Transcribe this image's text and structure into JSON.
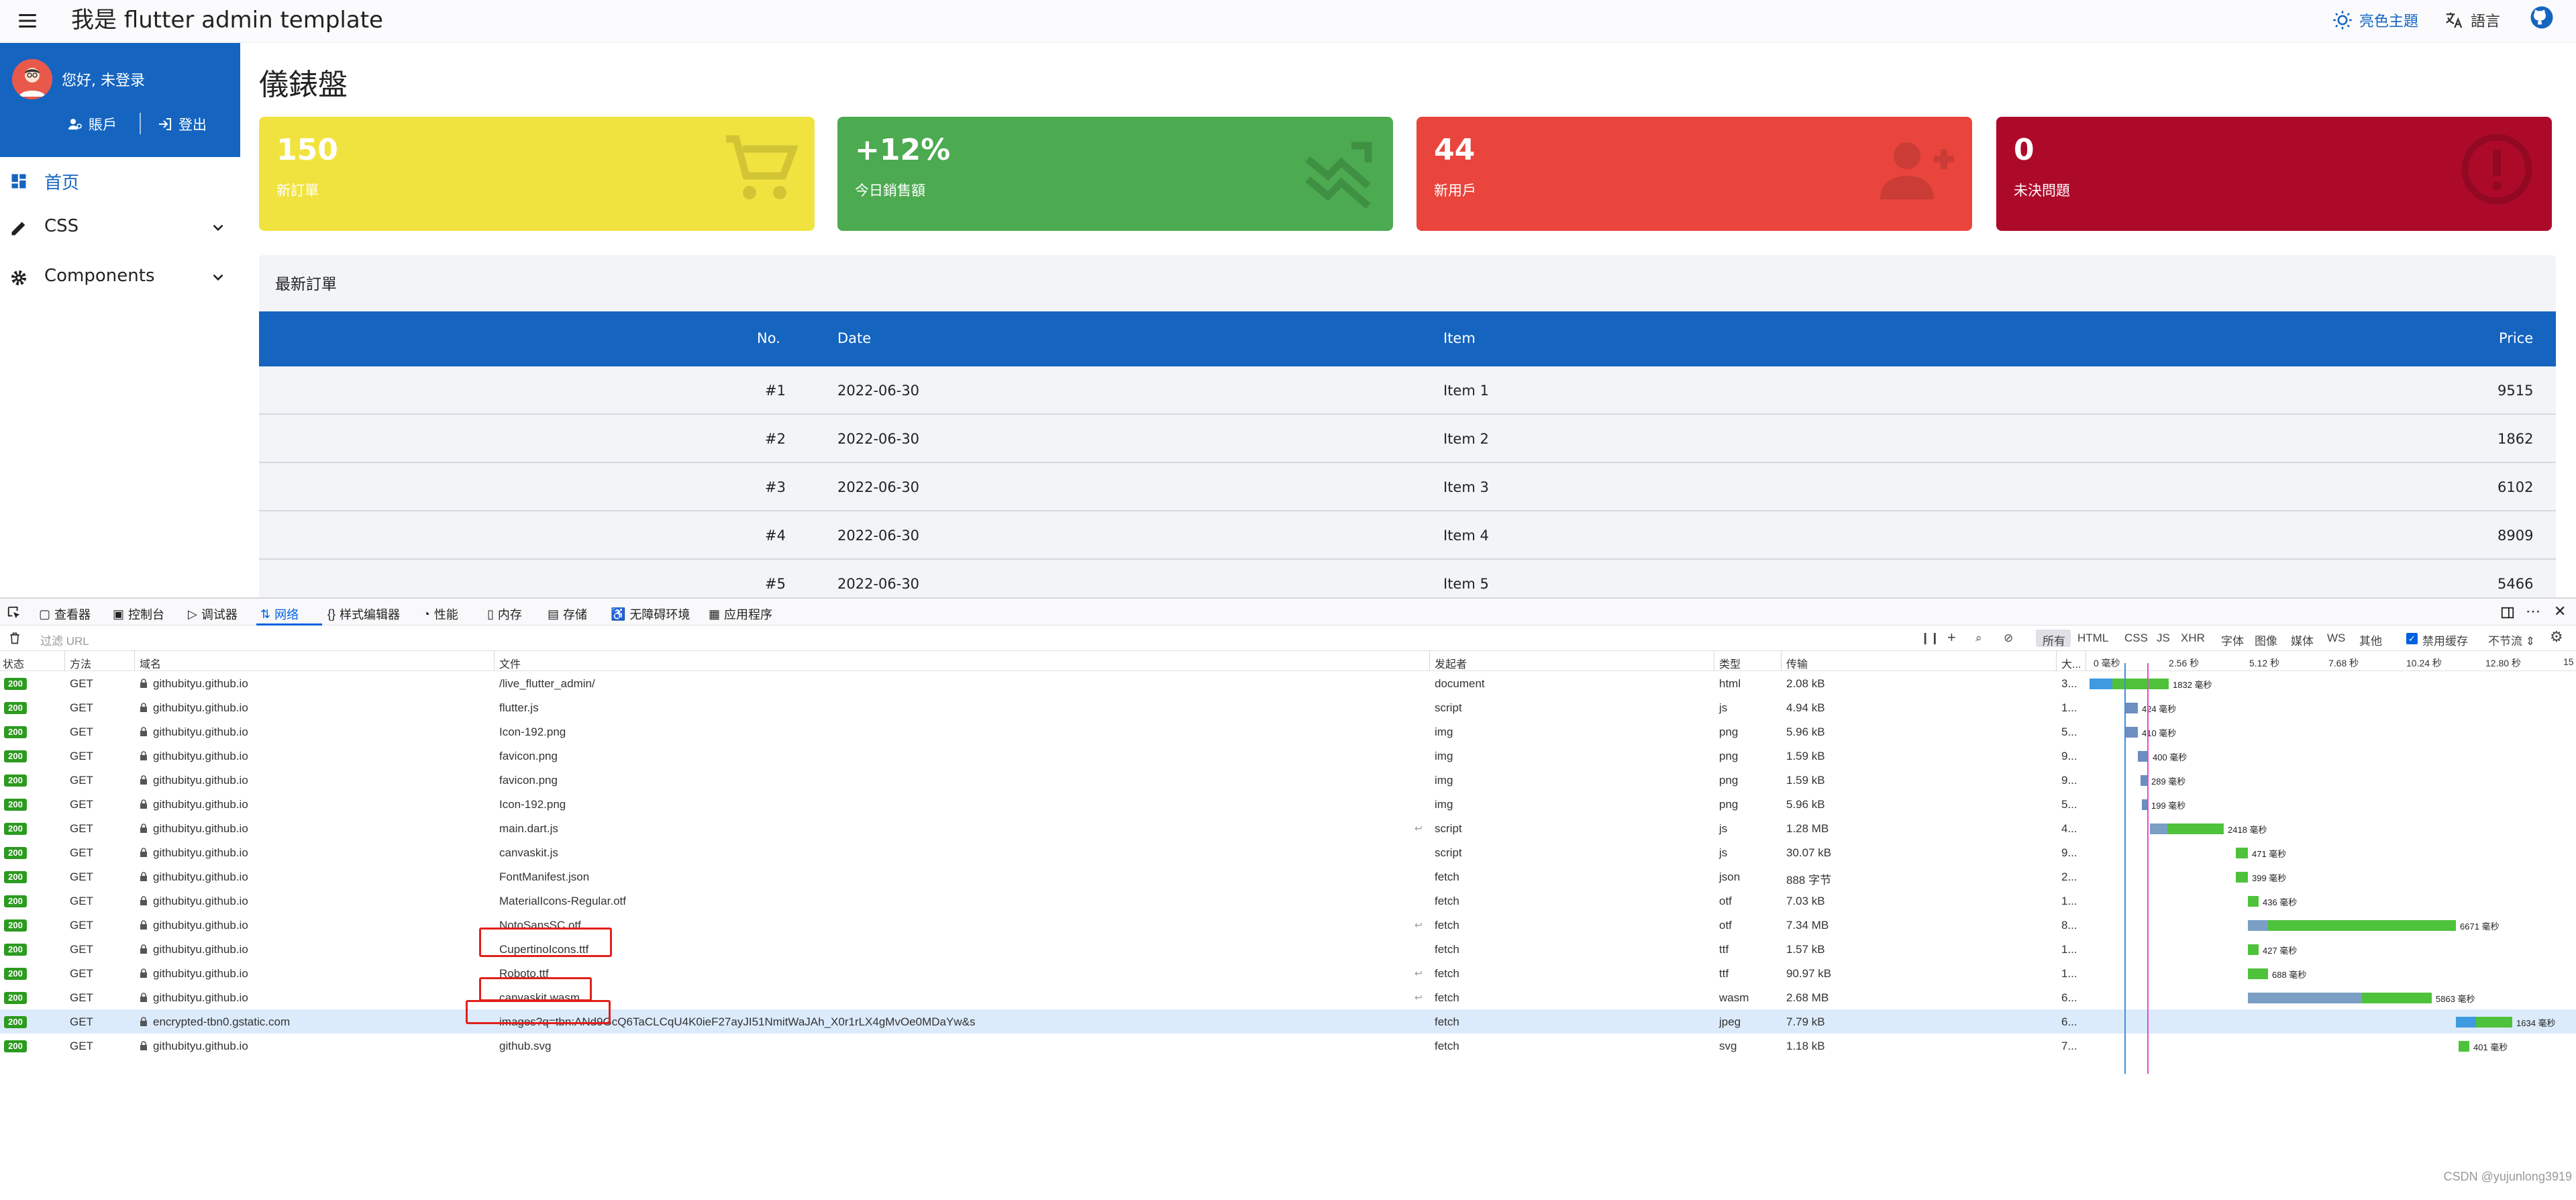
{
  "app": {
    "title": "我是 flutter admin template",
    "theme_label": "亮色主題",
    "lang_label": "語言",
    "sidebar": {
      "greeting": "您好, 未登录",
      "account_label": "賬戶",
      "logout_label": "登出",
      "items": [
        {
          "label": "首页",
          "icon": "dashboard-icon",
          "active": true
        },
        {
          "label": "CSS",
          "icon": "edit-icon"
        },
        {
          "label": "Components",
          "icon": "gear-icon"
        }
      ]
    },
    "page_title": "儀錶盤",
    "cards": [
      {
        "value": "150",
        "caption": "新訂單",
        "color": "#f1e33f",
        "icon": "cart-icon"
      },
      {
        "value": "+12%",
        "caption": "今日銷售額",
        "color": "#4caa50",
        "icon": "trend-icon"
      },
      {
        "value": "44",
        "caption": "新用戶",
        "color": "#e9453d",
        "icon": "add-user-icon"
      },
      {
        "value": "0",
        "caption": "未決問題",
        "color": "#ad0a2a",
        "icon": "alert-icon"
      }
    ],
    "orders": {
      "title": "最新訂單",
      "headers": [
        "No.",
        "Date",
        "Item",
        "Price"
      ],
      "rows": [
        [
          "#1",
          "2022-06-30",
          "Item 1",
          "9515"
        ],
        [
          "#2",
          "2022-06-30",
          "Item 2",
          "1862"
        ],
        [
          "#3",
          "2022-06-30",
          "Item 3",
          "6102"
        ],
        [
          "#4",
          "2022-06-30",
          "Item 4",
          "8909"
        ],
        [
          "#5",
          "2022-06-30",
          "Item 5",
          "5466"
        ]
      ]
    }
  },
  "devtools": {
    "tabs": [
      "查看器",
      "控制台",
      "调试器",
      "网络",
      "样式编辑器",
      "性能",
      "内存",
      "存储",
      "无障碍环境",
      "应用程序"
    ],
    "active_tab": "网络",
    "filter_placeholder": "过滤 URL",
    "type_filters": [
      "所有",
      "HTML",
      "CSS",
      "JS",
      "XHR",
      "字体",
      "图像",
      "媒体",
      "WS",
      "其他"
    ],
    "disable_cache_label": "禁用缓存",
    "throttle_label": "不节流 ⇕",
    "columns": [
      "状态",
      "方法",
      "域名",
      "文件",
      "发起者",
      "类型",
      "传输",
      "大..."
    ],
    "timeline_ticks": [
      "0 毫秒",
      "2.56 秒",
      "5.12 秒",
      "7.68 秒",
      "10.24 秒",
      "12.80 秒",
      "15"
    ],
    "requests": [
      {
        "status": "200",
        "method": "GET",
        "domain": "githubityu.github.io",
        "file": "/live_flutter_admin/",
        "initiator": "document",
        "type": "html",
        "transfer": "2.08 kB",
        "size": "3...",
        "timing": "1832 毫秒"
      },
      {
        "status": "200",
        "method": "GET",
        "domain": "githubityu.github.io",
        "file": "flutter.js",
        "initiator": "script",
        "type": "js",
        "transfer": "4.94 kB",
        "size": "1...",
        "timing": "424 毫秒"
      },
      {
        "status": "200",
        "method": "GET",
        "domain": "githubityu.github.io",
        "file": "Icon-192.png",
        "initiator": "img",
        "type": "png",
        "transfer": "5.96 kB",
        "size": "5...",
        "timing": "410 毫秒"
      },
      {
        "status": "200",
        "method": "GET",
        "domain": "githubityu.github.io",
        "file": "favicon.png",
        "initiator": "img",
        "type": "png",
        "transfer": "1.59 kB",
        "size": "9...",
        "timing": "400 毫秒"
      },
      {
        "status": "200",
        "method": "GET",
        "domain": "githubityu.github.io",
        "file": "favicon.png",
        "initiator": "img",
        "type": "png",
        "transfer": "1.59 kB",
        "size": "9...",
        "timing": "289 毫秒"
      },
      {
        "status": "200",
        "method": "GET",
        "domain": "githubityu.github.io",
        "file": "Icon-192.png",
        "initiator": "img",
        "type": "png",
        "transfer": "5.96 kB",
        "size": "5...",
        "timing": "199 毫秒"
      },
      {
        "status": "200",
        "method": "GET",
        "domain": "githubityu.github.io",
        "file": "main.dart.js",
        "initiator": "script",
        "type": "js",
        "transfer": "1.28 MB",
        "size": "4...",
        "timing": "2418 毫秒"
      },
      {
        "status": "200",
        "method": "GET",
        "domain": "githubityu.github.io",
        "file": "canvaskit.js",
        "initiator": "script",
        "type": "js",
        "transfer": "30.07 kB",
        "size": "9...",
        "timing": "471 毫秒"
      },
      {
        "status": "200",
        "method": "GET",
        "domain": "githubityu.github.io",
        "file": "FontManifest.json",
        "initiator": "fetch",
        "type": "json",
        "transfer": "888 字节",
        "size": "2...",
        "timing": "399 毫秒"
      },
      {
        "status": "200",
        "method": "GET",
        "domain": "githubityu.github.io",
        "file": "MaterialIcons-Regular.otf",
        "initiator": "fetch",
        "type": "otf",
        "transfer": "7.03 kB",
        "size": "1...",
        "timing": "436 毫秒"
      },
      {
        "status": "200",
        "method": "GET",
        "domain": "githubityu.github.io",
        "file": "NotoSansSC.otf",
        "initiator": "fetch",
        "type": "otf",
        "transfer": "7.34 MB",
        "size": "8...",
        "timing": "6671 毫秒"
      },
      {
        "status": "200",
        "method": "GET",
        "domain": "githubityu.github.io",
        "file": "CupertinoIcons.ttf",
        "initiator": "fetch",
        "type": "ttf",
        "transfer": "1.57 kB",
        "size": "1...",
        "timing": "427 毫秒"
      },
      {
        "status": "200",
        "method": "GET",
        "domain": "githubityu.github.io",
        "file": "Roboto.ttf",
        "initiator": "fetch",
        "type": "ttf",
        "transfer": "90.97 kB",
        "size": "1...",
        "timing": "688 毫秒"
      },
      {
        "status": "200",
        "method": "GET",
        "domain": "githubityu.github.io",
        "file": "canvaskit.wasm",
        "initiator": "fetch",
        "type": "wasm",
        "transfer": "2.68 MB",
        "size": "6...",
        "timing": "5863 毫秒"
      },
      {
        "status": "200",
        "method": "GET",
        "domain": "encrypted-tbn0.gstatic.com",
        "file": "images?q=tbn:ANd9GcQ6TaCLCqU4K0ieF27ayJI51NmitWaJAh_X0r1rLX4gMvOe0MDaYw&s",
        "initiator": "fetch",
        "type": "jpeg",
        "transfer": "7.79 kB",
        "size": "6...",
        "timing": "1634 毫秒"
      },
      {
        "status": "200",
        "method": "GET",
        "domain": "githubityu.github.io",
        "file": "github.svg",
        "initiator": "fetch",
        "type": "svg",
        "transfer": "1.18 kB",
        "size": "7...",
        "timing": "401 毫秒"
      }
    ]
  },
  "watermark": "CSDN @yujunlong3919"
}
